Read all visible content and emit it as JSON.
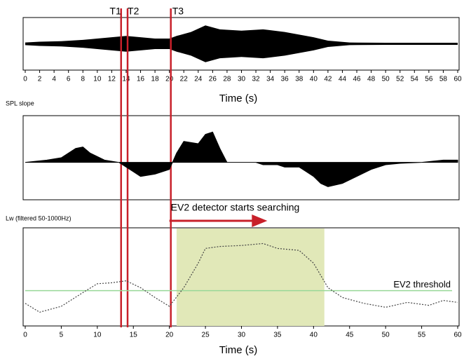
{
  "chart_data": [
    {
      "type": "envelope",
      "xlabel": "Time (s)",
      "color": "#000000",
      "x": [
        0,
        2,
        5,
        8,
        10,
        12,
        14,
        16,
        18,
        20,
        21,
        23,
        25,
        27,
        30,
        33,
        36,
        38,
        40,
        42,
        45,
        50,
        55,
        60
      ],
      "values": [
        0.05,
        0.08,
        0.1,
        0.15,
        0.2,
        0.25,
        0.3,
        0.25,
        0.2,
        0.2,
        0.3,
        0.45,
        0.7,
        0.55,
        0.5,
        0.55,
        0.45,
        0.35,
        0.25,
        0.12,
        0.05,
        0.04,
        0.04,
        0.04
      ],
      "xlim": [
        0,
        60
      ],
      "ylim": [
        -1,
        1
      ],
      "xticks": [
        0,
        2,
        4,
        6,
        8,
        10,
        12,
        14,
        16,
        18,
        20,
        22,
        24,
        26,
        28,
        30,
        32,
        34,
        36,
        38,
        40,
        42,
        44,
        46,
        48,
        50,
        52,
        54,
        56,
        58,
        60
      ],
      "markers": [
        {
          "label": "T1",
          "x": 13.3
        },
        {
          "label": "T2",
          "x": 14.2
        },
        {
          "label": "T3",
          "x": 20.2
        }
      ],
      "marker_color": "#c8202a"
    },
    {
      "type": "area",
      "ylabel": "SPL slope",
      "color": "#000000",
      "x": [
        0,
        3,
        5,
        7,
        8,
        9,
        11,
        13,
        15,
        16,
        18,
        20,
        21,
        22,
        24,
        25,
        26,
        27,
        28,
        32,
        33,
        35,
        36,
        38,
        39,
        40,
        41,
        42,
        44,
        46,
        48,
        50,
        52,
        55,
        58,
        60
      ],
      "values": [
        0,
        0.05,
        0.1,
        0.3,
        0.33,
        0.2,
        0.05,
        0,
        -0.2,
        -0.3,
        -0.25,
        -0.15,
        0.2,
        0.45,
        0.4,
        0.6,
        0.65,
        0.3,
        0,
        0,
        -0.05,
        -0.05,
        -0.1,
        -0.1,
        -0.2,
        -0.3,
        -0.45,
        -0.52,
        -0.45,
        -0.3,
        -0.15,
        -0.05,
        -0.02,
        0,
        0.05,
        0.05
      ],
      "xlim": [
        0,
        60
      ],
      "ylim": [
        -0.8,
        1
      ]
    },
    {
      "type": "line",
      "ylabel": "Lw (filtered 50-1000Hz)",
      "xlabel": "Time (s)",
      "color": "#444444",
      "x": [
        0,
        2,
        5,
        8,
        10,
        12,
        14,
        16,
        18,
        20,
        22,
        24,
        25,
        27,
        30,
        33,
        35,
        38,
        40,
        42,
        44,
        47,
        50,
        53,
        56,
        58,
        60
      ],
      "values": [
        2.3,
        1.4,
        2.0,
        3.4,
        4.3,
        4.4,
        4.6,
        3.9,
        2.9,
        2.0,
        3.9,
        6.4,
        7.9,
        8.1,
        8.2,
        8.4,
        7.9,
        7.7,
        6.4,
        3.9,
        2.9,
        2.3,
        1.9,
        2.4,
        2.1,
        2.6,
        2.4
      ],
      "xlim": [
        0,
        60
      ],
      "ylim": [
        0,
        10
      ],
      "xticks": [
        0,
        5,
        10,
        15,
        20,
        25,
        30,
        35,
        40,
        45,
        50,
        55,
        60
      ],
      "region": {
        "x": [
          21,
          41.5
        ],
        "color": "#e1e8b8"
      },
      "arrow": {
        "x": [
          20,
          33
        ],
        "label": "EV2 detector starts searching",
        "color": "#c8202a"
      },
      "threshold": {
        "value": 3.6,
        "label": "EV2 threshold",
        "color": "#98d898",
        "label_color": "#c8202a"
      }
    }
  ]
}
